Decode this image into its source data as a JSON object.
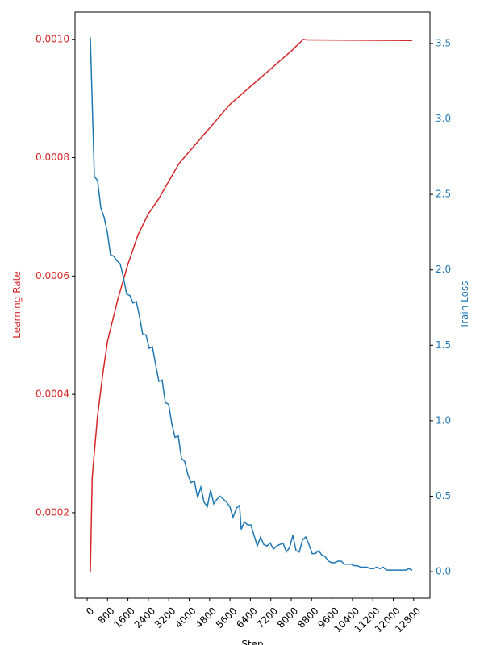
{
  "chart_data": {
    "type": "line",
    "x_label": "Step",
    "y_label": "Learning Rate",
    "y2_label": "Train Loss",
    "xlim": [
      -474,
      13439
    ],
    "ylim": [
      5.55e-05,
      0.001046
    ],
    "y2lim": [
      -0.176,
      3.708
    ],
    "xticks": [
      0,
      800,
      1600,
      2400,
      3200,
      4000,
      4800,
      5600,
      6400,
      7200,
      8000,
      8800,
      9600,
      10400,
      11200,
      12000,
      12800
    ],
    "yticks": [
      {
        "value": 0.0002,
        "label": "0.0002"
      },
      {
        "value": 0.0004,
        "label": "0.0004"
      },
      {
        "value": 0.0006,
        "label": "0.0006"
      },
      {
        "value": 0.0008,
        "label": "0.0008"
      },
      {
        "value": 0.001,
        "label": "0.0010"
      }
    ],
    "y2ticks": [
      {
        "value": 0,
        "label": "0.0"
      },
      0.5,
      {
        "value": 1,
        "label": "1.0"
      },
      1.5,
      {
        "value": 2,
        "label": "2.0"
      },
      2.5,
      {
        "value": 3,
        "label": "3.0"
      },
      3.5
    ],
    "series": [
      {
        "name": "Learning Rate",
        "color": "#d62728",
        "axis": "y",
        "x": [
          126,
          200,
          400,
          600,
          800,
          1200,
          1600,
          2000,
          2400,
          2800,
          3200,
          3600,
          4000,
          4800,
          5600,
          6400,
          7200,
          8000,
          8474,
          8600,
          12743
        ],
        "values": [
          0.0001,
          0.00026,
          0.00036,
          0.00043,
          0.00049,
          0.00056,
          0.00062,
          0.00067,
          0.000705,
          0.00073,
          0.00076,
          0.00079,
          0.00081,
          0.00085,
          0.00089,
          0.00092,
          0.00095,
          0.00098,
          0.001,
          0.000999,
          0.000998
        ]
      },
      {
        "name": "Train Loss",
        "color": "#1f77b4",
        "axis": "y2",
        "x": [
          126,
          284,
          411,
          538,
          664,
          791,
          917,
          1043,
          1170,
          1296,
          1423,
          1549,
          1676,
          1802,
          1929,
          2055,
          2182,
          2308,
          2435,
          2561,
          2688,
          2814,
          2941,
          3067,
          3194,
          3320,
          3447,
          3573,
          3700,
          3826,
          3953,
          4079,
          4206,
          4332,
          4458,
          4585,
          4711,
          4838,
          4964,
          5091,
          5217,
          5344,
          5470,
          5597,
          5723,
          5850,
          5976,
          6040,
          6166,
          6292,
          6419,
          6545,
          6672,
          6798,
          6925,
          7051,
          7178,
          7304,
          7431,
          7557,
          7684,
          7810,
          7937,
          8063,
          8190,
          8316,
          8443,
          8569,
          8696,
          8822,
          8949,
          9075,
          9202,
          9328,
          9455,
          9581,
          9708,
          9834,
          9961,
          10087,
          10213,
          10340,
          10466,
          10593,
          10719,
          10846,
          10972,
          11099,
          11225,
          11352,
          11478,
          11605,
          11731,
          11858,
          11984,
          12111,
          12237,
          12364,
          12490,
          12617,
          12743
        ],
        "values": [
          3.54,
          2.62,
          2.59,
          2.41,
          2.35,
          2.25,
          2.1,
          2.09,
          2.06,
          2.04,
          1.95,
          1.84,
          1.83,
          1.78,
          1.79,
          1.69,
          1.57,
          1.57,
          1.48,
          1.49,
          1.37,
          1.26,
          1.27,
          1.12,
          1.11,
          0.98,
          0.89,
          0.9,
          0.75,
          0.73,
          0.64,
          0.59,
          0.6,
          0.49,
          0.56,
          0.46,
          0.43,
          0.54,
          0.45,
          0.48,
          0.5,
          0.48,
          0.46,
          0.43,
          0.36,
          0.42,
          0.44,
          0.28,
          0.33,
          0.31,
          0.31,
          0.24,
          0.17,
          0.23,
          0.18,
          0.17,
          0.19,
          0.15,
          0.17,
          0.18,
          0.19,
          0.13,
          0.16,
          0.24,
          0.14,
          0.13,
          0.21,
          0.23,
          0.18,
          0.12,
          0.12,
          0.14,
          0.11,
          0.1,
          0.07,
          0.06,
          0.06,
          0.07,
          0.07,
          0.05,
          0.05,
          0.05,
          0.04,
          0.04,
          0.03,
          0.03,
          0.03,
          0.02,
          0.02,
          0.03,
          0.02,
          0.03,
          0.01,
          0.01,
          0.01,
          0.01,
          0.01,
          0.01,
          0.01,
          0.02,
          0.01
        ]
      }
    ]
  }
}
